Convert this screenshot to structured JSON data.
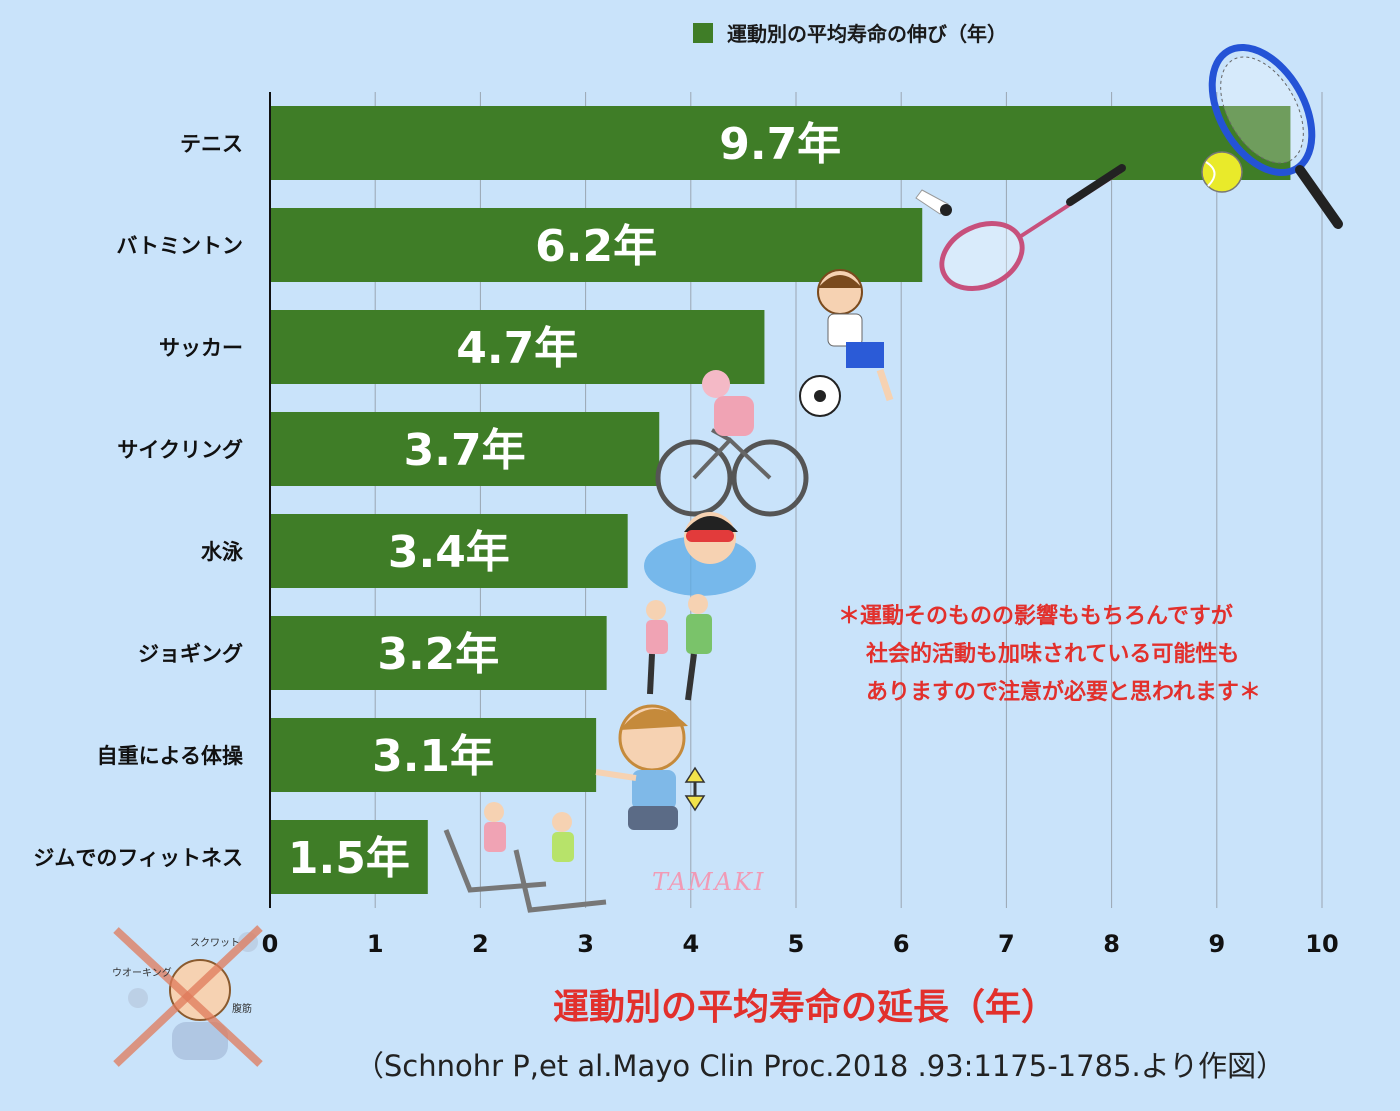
{
  "chart_data": {
    "type": "bar",
    "orientation": "horizontal",
    "categories": [
      "テニス",
      "バトミントン",
      "サッカー",
      "サイクリング",
      "水泳",
      "ジョギング",
      "自重による体操",
      "ジムでのフィットネス"
    ],
    "series": [
      {
        "name": "運動別の平均寿命の伸び（年）",
        "values": [
          9.7,
          6.2,
          4.7,
          3.7,
          3.4,
          3.2,
          3.1,
          1.5
        ],
        "data_labels": [
          "9.7年",
          "6.2年",
          "4.7年",
          "3.7年",
          "3.4年",
          "3.2年",
          "3.1年",
          "1.5年"
        ]
      }
    ],
    "xlim": [
      0,
      10
    ],
    "xticks": [
      "0",
      "1",
      "2",
      "3",
      "4",
      "5",
      "6",
      "7",
      "8",
      "9",
      "10"
    ],
    "xlabel": "運動別の平均寿命の延長（年）",
    "grid": "vertical",
    "legend_position": "top",
    "bar_color": "#3f7d27"
  },
  "note_lines": [
    "＊運動そのものの影響ももちろんですが",
    "社会的活動も加味されている可能性も",
    "ありますので注意が必要と思われます＊"
  ],
  "source": "（Schnohr P,et al.Mayo Clin Proc.2018 .93:1175-1785.より作図）",
  "watermark": "TAMAKI",
  "illustration_labels": [
    "スクワット",
    "ウオーキング",
    "腹筋"
  ],
  "colors": {
    "background": "#c9e3fa",
    "accent_red": "#e2302c"
  }
}
